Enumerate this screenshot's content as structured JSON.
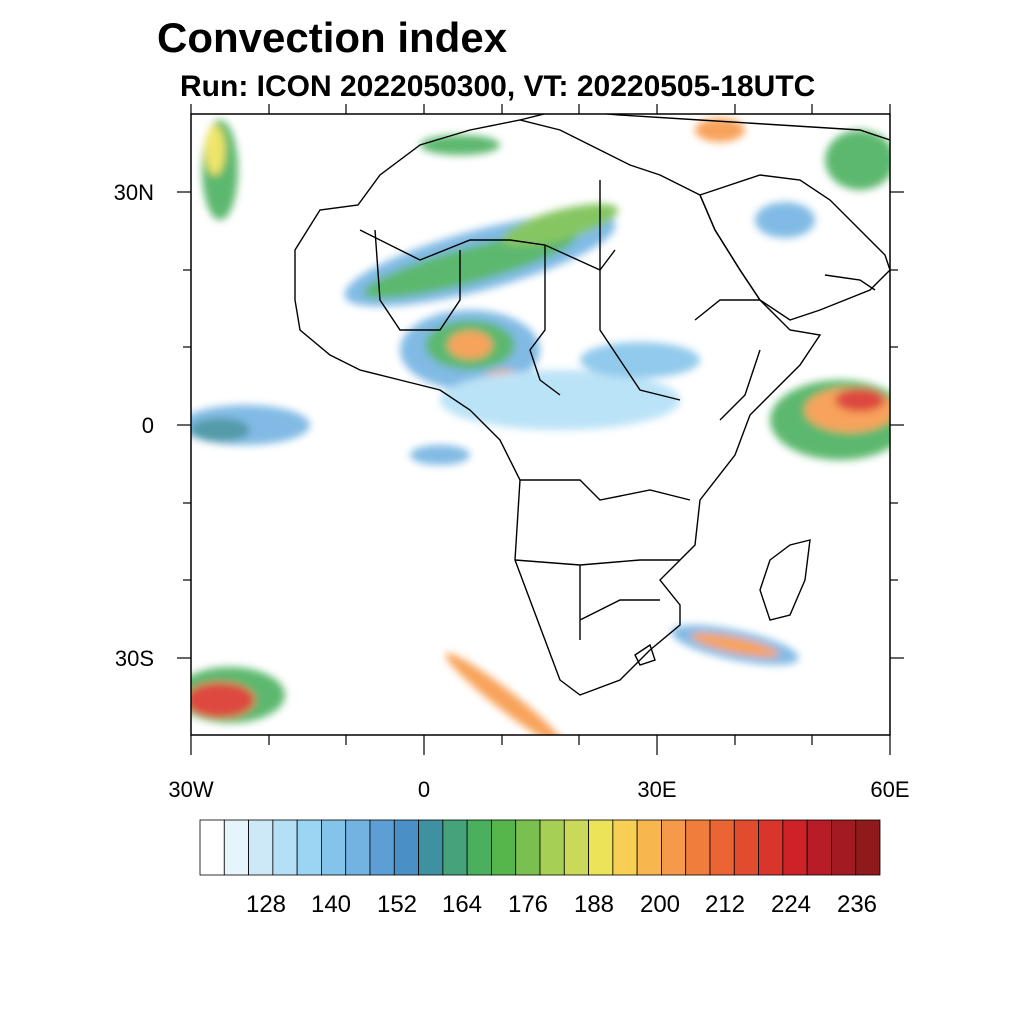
{
  "header": {
    "title": "Convection index",
    "subtitle": "Run: ICON 2022050300,  VT: 20220505-18UTC"
  },
  "axes": {
    "lat_labels": [
      "30N",
      "0",
      "30S"
    ],
    "lon_labels": [
      "30W",
      "0",
      "30E",
      "60E"
    ]
  },
  "colorbar": {
    "labels": [
      "128",
      "140",
      "152",
      "164",
      "176",
      "188",
      "200",
      "212",
      "224",
      "236"
    ],
    "colors": [
      "#ffffff",
      "#e6f4fb",
      "#cde9f8",
      "#b4e0f6",
      "#9ad5f3",
      "#85c4ea",
      "#73b3e2",
      "#5d9fd4",
      "#4a8fc6",
      "#3f90a0",
      "#45a37a",
      "#4bb05e",
      "#56b64b",
      "#79c051",
      "#a6cf55",
      "#cbd95a",
      "#ece358",
      "#f6cf54",
      "#f8b64f",
      "#f7994a",
      "#f17d3d",
      "#ea6533",
      "#e24c2e",
      "#da352b",
      "#cc2228",
      "#b81c26",
      "#a41a22",
      "#8f1a1b"
    ]
  },
  "map_style": {
    "coast_color": "#000000",
    "field_colors": {
      "light": "#b4e0f6",
      "blue": "#73b3e2",
      "teal": "#3f90a0",
      "green": "#4bb05e",
      "yellow": "#ece358",
      "orange": "#f7994a",
      "red": "#da352b",
      "darkred": "#a41a22"
    }
  }
}
